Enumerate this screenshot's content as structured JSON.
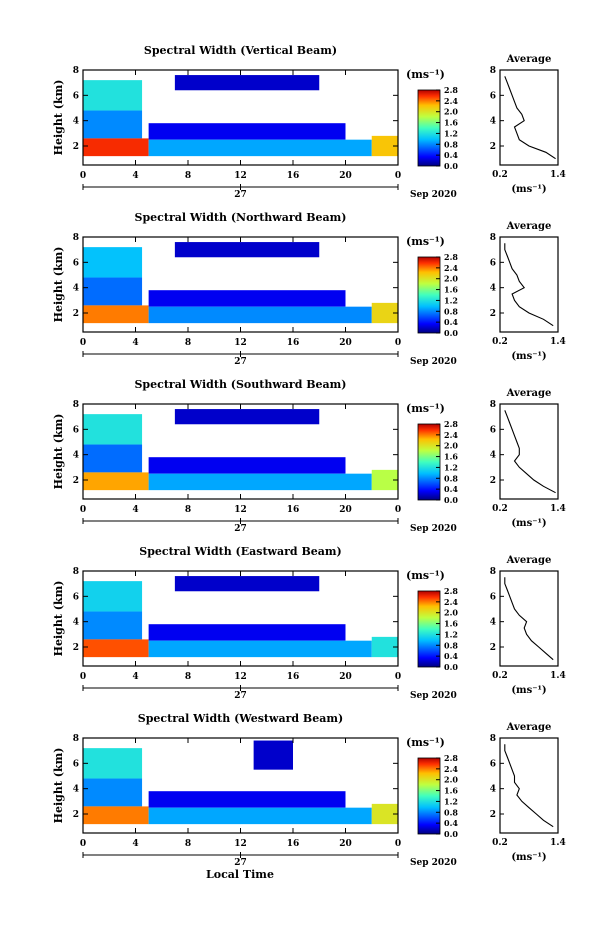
{
  "figure": {
    "xaxis_title": "Local Time"
  },
  "chart_data": [
    {
      "type": "heatmap",
      "title": "Spectral Width (Vertical Beam)",
      "ylabel": "Height (km)",
      "x_ticks": [
        "0",
        "4",
        "8",
        "12",
        "16",
        "20",
        "0"
      ],
      "y_ticks": [
        "2",
        "4",
        "6",
        "8"
      ],
      "date_day": "27",
      "date_month": "Sep 2020",
      "xlim": [
        0,
        24
      ],
      "ylim": [
        0.5,
        8
      ],
      "colorbar": {
        "unit": "(ms⁻¹)",
        "ticks": [
          "0.0",
          "0.4",
          "0.8",
          "1.2",
          "1.6",
          "2.0",
          "2.4",
          "2.8"
        ]
      },
      "cells": [
        {
          "x0": 0,
          "x1": 4.5,
          "y0": 4.8,
          "y1": 7.2,
          "v": 1.2
        },
        {
          "x0": 0,
          "x1": 4.5,
          "y0": 2.6,
          "y1": 4.8,
          "v": 0.8
        },
        {
          "x0": 0,
          "x1": 5,
          "y0": 1.2,
          "y1": 2.6,
          "v": 2.6
        },
        {
          "x0": 5,
          "x1": 20,
          "y0": 2.5,
          "y1": 3.8,
          "v": 0.3
        },
        {
          "x0": 5,
          "x1": 22,
          "y0": 1.2,
          "y1": 2.5,
          "v": 0.9
        },
        {
          "x0": 7,
          "x1": 18,
          "y0": 6.4,
          "y1": 7.6,
          "v": 0.2
        },
        {
          "x0": 22,
          "x1": 24,
          "y0": 1.2,
          "y1": 2.8,
          "v": 2.2
        }
      ],
      "average": {
        "title": "Average",
        "unit": "(ms⁻¹)",
        "x_ticks": [
          "0.2",
          "1.4"
        ],
        "y_ticks": [
          "2",
          "4",
          "6",
          "8"
        ],
        "xlim": [
          0.2,
          1.4
        ],
        "ylim": [
          0.5,
          8
        ],
        "height": [
          1.0,
          1.5,
          2.0,
          2.5,
          3.0,
          3.5,
          4.0,
          4.5,
          5.0,
          5.5,
          6.0,
          6.5,
          7.0,
          7.5
        ],
        "value": [
          1.35,
          1.15,
          0.8,
          0.6,
          0.55,
          0.5,
          0.7,
          0.65,
          0.55,
          0.5,
          0.45,
          0.4,
          0.35,
          0.3
        ]
      }
    },
    {
      "type": "heatmap",
      "title": "Spectral Width (Northward Beam)",
      "ylabel": "Height (km)",
      "x_ticks": [
        "0",
        "4",
        "8",
        "12",
        "16",
        "20",
        "0"
      ],
      "y_ticks": [
        "2",
        "4",
        "6",
        "8"
      ],
      "date_day": "27",
      "date_month": "Sep 2020",
      "xlim": [
        0,
        24
      ],
      "ylim": [
        0.5,
        8
      ],
      "colorbar": {
        "unit": "(ms⁻¹)",
        "ticks": [
          "0.0",
          "0.4",
          "0.8",
          "1.2",
          "1.6",
          "2.0",
          "2.4",
          "2.8"
        ]
      },
      "cells": [
        {
          "x0": 0,
          "x1": 4.5,
          "y0": 4.8,
          "y1": 7.2,
          "v": 1.0
        },
        {
          "x0": 0,
          "x1": 4.5,
          "y0": 2.6,
          "y1": 4.8,
          "v": 0.7
        },
        {
          "x0": 0,
          "x1": 5,
          "y0": 1.2,
          "y1": 2.6,
          "v": 2.4
        },
        {
          "x0": 5,
          "x1": 20,
          "y0": 2.5,
          "y1": 3.8,
          "v": 0.3
        },
        {
          "x0": 5,
          "x1": 22,
          "y0": 1.2,
          "y1": 2.5,
          "v": 0.8
        },
        {
          "x0": 7,
          "x1": 18,
          "y0": 6.4,
          "y1": 7.6,
          "v": 0.2
        },
        {
          "x0": 22,
          "x1": 24,
          "y0": 1.2,
          "y1": 2.8,
          "v": 2.1
        }
      ],
      "average": {
        "title": "Average",
        "unit": "(ms⁻¹)",
        "x_ticks": [
          "0.2",
          "1.4"
        ],
        "y_ticks": [
          "2",
          "4",
          "6",
          "8"
        ],
        "xlim": [
          0.2,
          1.4
        ],
        "ylim": [
          0.5,
          8
        ],
        "height": [
          1.0,
          1.5,
          2.0,
          2.5,
          3.0,
          3.5,
          4.0,
          4.5,
          5.0,
          5.5,
          6.0,
          6.5,
          7.0,
          7.5
        ],
        "value": [
          1.3,
          1.1,
          0.8,
          0.6,
          0.5,
          0.45,
          0.7,
          0.6,
          0.55,
          0.45,
          0.4,
          0.35,
          0.3,
          0.3
        ]
      }
    },
    {
      "type": "heatmap",
      "title": "Spectral Width (Southward Beam)",
      "ylabel": "Height (km)",
      "x_ticks": [
        "0",
        "4",
        "8",
        "12",
        "16",
        "20",
        "0"
      ],
      "y_ticks": [
        "2",
        "4",
        "6",
        "8"
      ],
      "date_day": "27",
      "date_month": "Sep 2020",
      "xlim": [
        0,
        24
      ],
      "ylim": [
        0.5,
        8
      ],
      "colorbar": {
        "unit": "(ms⁻¹)",
        "ticks": [
          "0.0",
          "0.4",
          "0.8",
          "1.2",
          "1.6",
          "2.0",
          "2.4",
          "2.8"
        ]
      },
      "cells": [
        {
          "x0": 0,
          "x1": 4.5,
          "y0": 4.8,
          "y1": 7.2,
          "v": 1.2
        },
        {
          "x0": 0,
          "x1": 4.5,
          "y0": 2.6,
          "y1": 4.8,
          "v": 0.7
        },
        {
          "x0": 0,
          "x1": 5,
          "y0": 1.2,
          "y1": 2.6,
          "v": 2.3
        },
        {
          "x0": 5,
          "x1": 20,
          "y0": 2.5,
          "y1": 3.8,
          "v": 0.3
        },
        {
          "x0": 5,
          "x1": 22,
          "y0": 1.2,
          "y1": 2.5,
          "v": 0.9
        },
        {
          "x0": 7,
          "x1": 18,
          "y0": 6.4,
          "y1": 7.6,
          "v": 0.2
        },
        {
          "x0": 22,
          "x1": 24,
          "y0": 1.2,
          "y1": 2.8,
          "v": 1.8
        }
      ],
      "average": {
        "title": "Average",
        "unit": "(ms⁻¹)",
        "x_ticks": [
          "0.2",
          "1.4"
        ],
        "y_ticks": [
          "2",
          "4",
          "6",
          "8"
        ],
        "xlim": [
          0.2,
          1.4
        ],
        "ylim": [
          0.5,
          8
        ],
        "height": [
          1.0,
          1.5,
          2.0,
          2.5,
          3.0,
          3.5,
          4.0,
          4.5,
          5.0,
          5.5,
          6.0,
          6.5,
          7.0,
          7.5
        ],
        "value": [
          1.35,
          1.1,
          0.9,
          0.75,
          0.6,
          0.5,
          0.6,
          0.6,
          0.55,
          0.5,
          0.45,
          0.4,
          0.35,
          0.3
        ]
      }
    },
    {
      "type": "heatmap",
      "title": "Spectral Width (Eastward Beam)",
      "ylabel": "Height (km)",
      "x_ticks": [
        "0",
        "4",
        "8",
        "12",
        "16",
        "20",
        "0"
      ],
      "y_ticks": [
        "2",
        "4",
        "6",
        "8"
      ],
      "date_day": "27",
      "date_month": "Sep 2020",
      "xlim": [
        0,
        24
      ],
      "ylim": [
        0.5,
        8
      ],
      "colorbar": {
        "unit": "(ms⁻¹)",
        "ticks": [
          "0.0",
          "0.4",
          "0.8",
          "1.2",
          "1.6",
          "2.0",
          "2.4",
          "2.8"
        ]
      },
      "cells": [
        {
          "x0": 0,
          "x1": 4.5,
          "y0": 4.8,
          "y1": 7.2,
          "v": 1.1
        },
        {
          "x0": 0,
          "x1": 4.5,
          "y0": 2.6,
          "y1": 4.8,
          "v": 0.8
        },
        {
          "x0": 0,
          "x1": 5,
          "y0": 1.2,
          "y1": 2.6,
          "v": 2.5
        },
        {
          "x0": 5,
          "x1": 20,
          "y0": 2.5,
          "y1": 3.8,
          "v": 0.3
        },
        {
          "x0": 5,
          "x1": 22,
          "y0": 1.2,
          "y1": 2.5,
          "v": 0.9
        },
        {
          "x0": 7,
          "x1": 18,
          "y0": 6.4,
          "y1": 7.6,
          "v": 0.2
        },
        {
          "x0": 22,
          "x1": 24,
          "y0": 1.2,
          "y1": 2.8,
          "v": 1.2
        }
      ],
      "average": {
        "title": "Average",
        "unit": "(ms⁻¹)",
        "x_ticks": [
          "0.2",
          "1.4"
        ],
        "y_ticks": [
          "2",
          "4",
          "6",
          "8"
        ],
        "xlim": [
          0.2,
          1.4
        ],
        "ylim": [
          0.5,
          8
        ],
        "height": [
          1.0,
          1.5,
          2.0,
          2.5,
          3.0,
          3.5,
          4.0,
          4.5,
          5.0,
          5.5,
          6.0,
          6.5,
          7.0,
          7.5
        ],
        "value": [
          1.3,
          1.15,
          1.0,
          0.85,
          0.75,
          0.7,
          0.75,
          0.6,
          0.5,
          0.45,
          0.4,
          0.35,
          0.3,
          0.3
        ]
      }
    },
    {
      "type": "heatmap",
      "title": "Spectral Width (Westward Beam)",
      "ylabel": "Height (km)",
      "x_ticks": [
        "0",
        "4",
        "8",
        "12",
        "16",
        "20",
        "0"
      ],
      "y_ticks": [
        "2",
        "4",
        "6",
        "8"
      ],
      "date_day": "27",
      "date_month": "Sep 2020",
      "xlim": [
        0,
        24
      ],
      "ylim": [
        0.5,
        8
      ],
      "colorbar": {
        "unit": "(ms⁻¹)",
        "ticks": [
          "0.0",
          "0.4",
          "0.8",
          "1.2",
          "1.6",
          "2.0",
          "2.4",
          "2.8"
        ]
      },
      "cells": [
        {
          "x0": 0,
          "x1": 4.5,
          "y0": 4.8,
          "y1": 7.2,
          "v": 1.2
        },
        {
          "x0": 0,
          "x1": 4.5,
          "y0": 2.6,
          "y1": 4.8,
          "v": 0.8
        },
        {
          "x0": 0,
          "x1": 5,
          "y0": 1.2,
          "y1": 2.6,
          "v": 2.4
        },
        {
          "x0": 5,
          "x1": 20,
          "y0": 2.5,
          "y1": 3.8,
          "v": 0.3
        },
        {
          "x0": 5,
          "x1": 22,
          "y0": 1.2,
          "y1": 2.5,
          "v": 0.9
        },
        {
          "x0": 13,
          "x1": 16,
          "y0": 5.5,
          "y1": 7.8,
          "v": 0.2
        },
        {
          "x0": 22,
          "x1": 24,
          "y0": 1.2,
          "y1": 2.8,
          "v": 2.0
        }
      ],
      "average": {
        "title": "Average",
        "unit": "(ms⁻¹)",
        "x_ticks": [
          "0.2",
          "1.4"
        ],
        "y_ticks": [
          "2",
          "4",
          "6",
          "8"
        ],
        "xlim": [
          0.2,
          1.4
        ],
        "ylim": [
          0.5,
          8
        ],
        "height": [
          1.0,
          1.5,
          2.0,
          2.5,
          3.0,
          3.5,
          4.0,
          4.5,
          5.0,
          5.5,
          6.0,
          6.5,
          7.0,
          7.5
        ],
        "value": [
          1.3,
          1.1,
          0.95,
          0.8,
          0.65,
          0.55,
          0.6,
          0.5,
          0.5,
          0.45,
          0.4,
          0.35,
          0.3,
          0.3
        ]
      }
    }
  ]
}
